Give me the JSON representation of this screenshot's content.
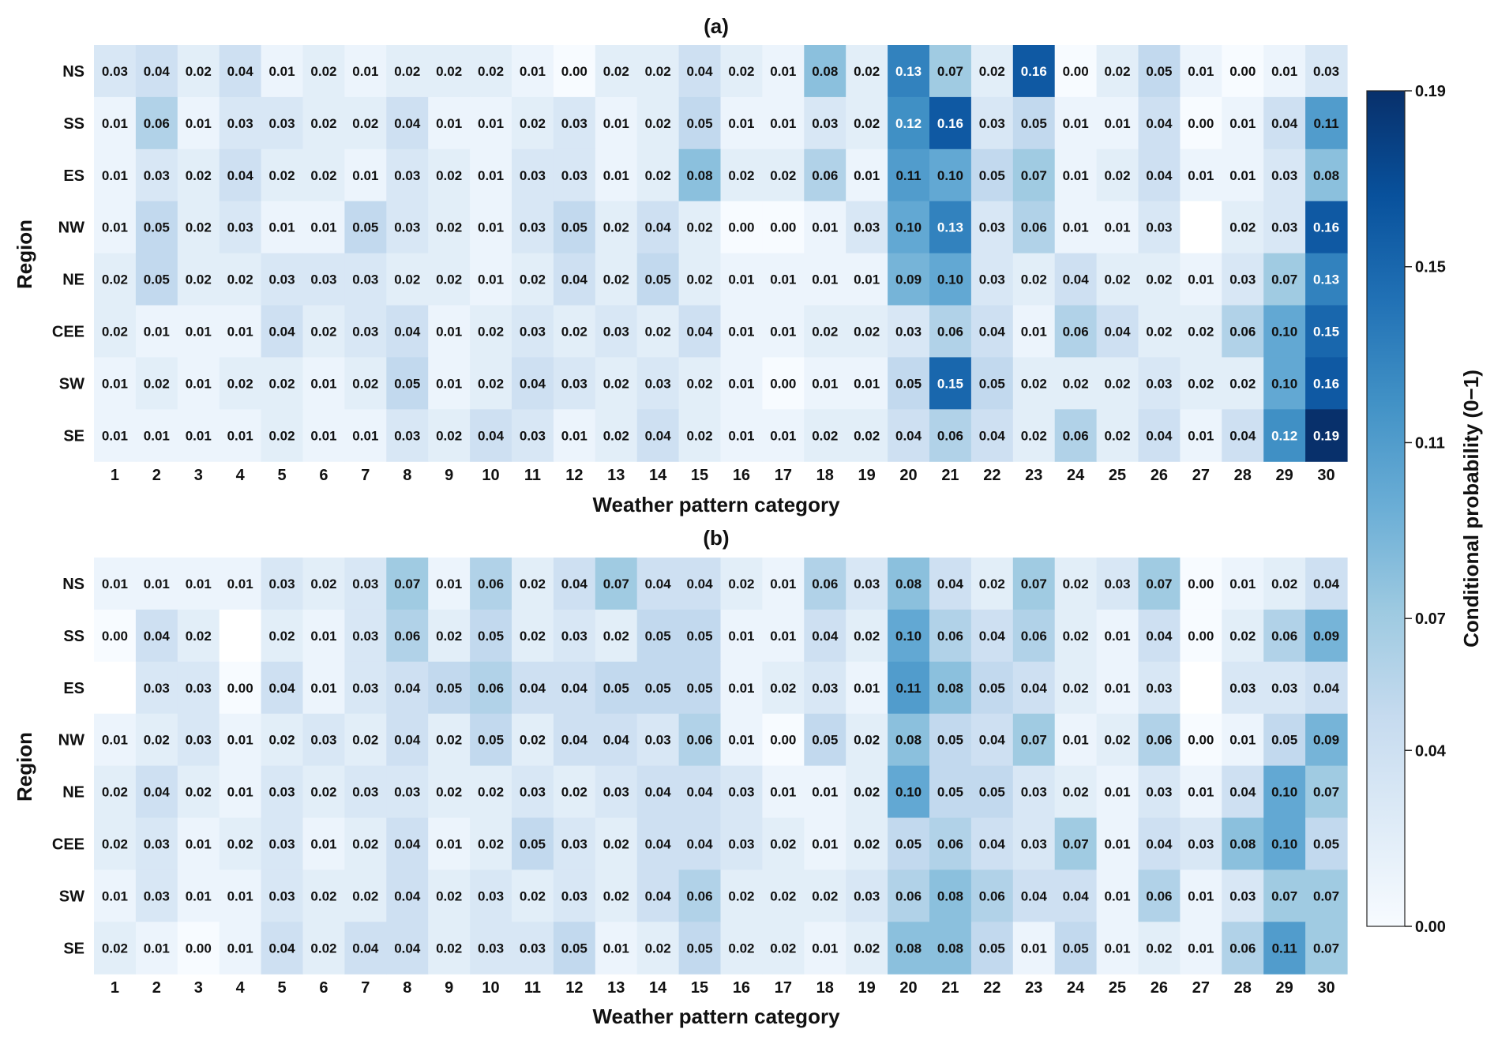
{
  "chart_data": [
    {
      "type": "heatmap",
      "title": "(a)",
      "xlabel": "Weather pattern category",
      "ylabel": "Region",
      "x": [
        "1",
        "2",
        "3",
        "4",
        "5",
        "6",
        "7",
        "8",
        "9",
        "10",
        "11",
        "12",
        "13",
        "14",
        "15",
        "16",
        "17",
        "18",
        "19",
        "20",
        "21",
        "22",
        "23",
        "24",
        "25",
        "26",
        "27",
        "28",
        "29",
        "30"
      ],
      "y": [
        "NS",
        "SS",
        "ES",
        "NW",
        "NE",
        "CEE",
        "SW",
        "SE"
      ],
      "values": [
        [
          0.03,
          0.04,
          0.02,
          0.04,
          0.01,
          0.02,
          0.01,
          0.02,
          0.02,
          0.02,
          0.01,
          0.0,
          0.02,
          0.02,
          0.04,
          0.02,
          0.01,
          0.08,
          0.02,
          0.13,
          0.07,
          0.02,
          0.16,
          0.0,
          0.02,
          0.05,
          0.01,
          0.0,
          0.01,
          0.03
        ],
        [
          0.01,
          0.06,
          0.01,
          0.03,
          0.03,
          0.02,
          0.02,
          0.04,
          0.01,
          0.01,
          0.02,
          0.03,
          0.01,
          0.02,
          0.05,
          0.01,
          0.01,
          0.03,
          0.02,
          0.12,
          0.16,
          0.03,
          0.05,
          0.01,
          0.01,
          0.04,
          0.0,
          0.01,
          0.04,
          0.11
        ],
        [
          0.01,
          0.03,
          0.02,
          0.04,
          0.02,
          0.02,
          0.01,
          0.03,
          0.02,
          0.01,
          0.03,
          0.03,
          0.01,
          0.02,
          0.08,
          0.02,
          0.02,
          0.06,
          0.01,
          0.11,
          0.1,
          0.05,
          0.07,
          0.01,
          0.02,
          0.04,
          0.01,
          0.01,
          0.03,
          0.08
        ],
        [
          0.01,
          0.05,
          0.02,
          0.03,
          0.01,
          0.01,
          0.05,
          0.03,
          0.02,
          0.01,
          0.03,
          0.05,
          0.02,
          0.04,
          0.02,
          0.0,
          0.0,
          0.01,
          0.03,
          0.1,
          0.13,
          0.03,
          0.06,
          0.01,
          0.01,
          0.03,
          null,
          0.02,
          0.03,
          0.16
        ],
        [
          0.02,
          0.05,
          0.02,
          0.02,
          0.03,
          0.03,
          0.03,
          0.02,
          0.02,
          0.01,
          0.02,
          0.04,
          0.02,
          0.05,
          0.02,
          0.01,
          0.01,
          0.01,
          0.01,
          0.09,
          0.1,
          0.03,
          0.02,
          0.04,
          0.02,
          0.02,
          0.01,
          0.03,
          0.07,
          0.13
        ],
        [
          0.02,
          0.01,
          0.01,
          0.01,
          0.04,
          0.02,
          0.03,
          0.04,
          0.01,
          0.02,
          0.03,
          0.02,
          0.03,
          0.02,
          0.04,
          0.01,
          0.01,
          0.02,
          0.02,
          0.03,
          0.06,
          0.04,
          0.01,
          0.06,
          0.04,
          0.02,
          0.02,
          0.06,
          0.1,
          0.15
        ],
        [
          0.01,
          0.02,
          0.01,
          0.02,
          0.02,
          0.01,
          0.02,
          0.05,
          0.01,
          0.02,
          0.04,
          0.03,
          0.02,
          0.03,
          0.02,
          0.01,
          0.0,
          0.01,
          0.01,
          0.05,
          0.15,
          0.05,
          0.02,
          0.02,
          0.02,
          0.03,
          0.02,
          0.02,
          0.1,
          0.16
        ],
        [
          0.01,
          0.01,
          0.01,
          0.01,
          0.02,
          0.01,
          0.01,
          0.03,
          0.02,
          0.04,
          0.03,
          0.01,
          0.02,
          0.04,
          0.02,
          0.01,
          0.01,
          0.02,
          0.02,
          0.04,
          0.06,
          0.04,
          0.02,
          0.06,
          0.02,
          0.04,
          0.01,
          0.04,
          0.12,
          0.19
        ]
      ]
    },
    {
      "type": "heatmap",
      "title": "(b)",
      "xlabel": "Weather pattern category",
      "ylabel": "Region",
      "x": [
        "1",
        "2",
        "3",
        "4",
        "5",
        "6",
        "7",
        "8",
        "9",
        "10",
        "11",
        "12",
        "13",
        "14",
        "15",
        "16",
        "17",
        "18",
        "19",
        "20",
        "21",
        "22",
        "23",
        "24",
        "25",
        "26",
        "27",
        "28",
        "29",
        "30"
      ],
      "y": [
        "NS",
        "SS",
        "ES",
        "NW",
        "NE",
        "CEE",
        "SW",
        "SE"
      ],
      "values": [
        [
          0.01,
          0.01,
          0.01,
          0.01,
          0.03,
          0.02,
          0.03,
          0.07,
          0.01,
          0.06,
          0.02,
          0.04,
          0.07,
          0.04,
          0.04,
          0.02,
          0.01,
          0.06,
          0.03,
          0.08,
          0.04,
          0.02,
          0.07,
          0.02,
          0.03,
          0.07,
          0.0,
          0.01,
          0.02,
          0.04
        ],
        [
          0.0,
          0.04,
          0.02,
          null,
          0.02,
          0.01,
          0.03,
          0.06,
          0.02,
          0.05,
          0.02,
          0.03,
          0.02,
          0.05,
          0.05,
          0.01,
          0.01,
          0.04,
          0.02,
          0.1,
          0.06,
          0.04,
          0.06,
          0.02,
          0.01,
          0.04,
          0.0,
          0.02,
          0.06,
          0.09
        ],
        [
          null,
          0.03,
          0.03,
          0.0,
          0.04,
          0.01,
          0.03,
          0.04,
          0.05,
          0.06,
          0.04,
          0.04,
          0.05,
          0.05,
          0.05,
          0.01,
          0.02,
          0.03,
          0.01,
          0.11,
          0.08,
          0.05,
          0.04,
          0.02,
          0.01,
          0.03,
          null,
          0.03,
          0.03,
          0.04
        ],
        [
          0.01,
          0.02,
          0.03,
          0.01,
          0.02,
          0.03,
          0.02,
          0.04,
          0.02,
          0.05,
          0.02,
          0.04,
          0.04,
          0.03,
          0.06,
          0.01,
          0.0,
          0.05,
          0.02,
          0.08,
          0.05,
          0.04,
          0.07,
          0.01,
          0.02,
          0.06,
          0.0,
          0.01,
          0.05,
          0.09
        ],
        [
          0.02,
          0.04,
          0.02,
          0.01,
          0.03,
          0.02,
          0.03,
          0.03,
          0.02,
          0.02,
          0.03,
          0.02,
          0.03,
          0.04,
          0.04,
          0.03,
          0.01,
          0.01,
          0.02,
          0.1,
          0.05,
          0.05,
          0.03,
          0.02,
          0.01,
          0.03,
          0.01,
          0.04,
          0.1,
          0.07
        ],
        [
          0.02,
          0.03,
          0.01,
          0.02,
          0.03,
          0.01,
          0.02,
          0.04,
          0.01,
          0.02,
          0.05,
          0.03,
          0.02,
          0.04,
          0.04,
          0.03,
          0.02,
          0.01,
          0.02,
          0.05,
          0.06,
          0.04,
          0.03,
          0.07,
          0.01,
          0.04,
          0.03,
          0.08,
          0.1,
          0.05
        ],
        [
          0.01,
          0.03,
          0.01,
          0.01,
          0.03,
          0.02,
          0.02,
          0.04,
          0.02,
          0.03,
          0.02,
          0.03,
          0.02,
          0.04,
          0.06,
          0.02,
          0.02,
          0.02,
          0.03,
          0.06,
          0.08,
          0.06,
          0.04,
          0.04,
          0.01,
          0.06,
          0.01,
          0.03,
          0.07,
          0.07
        ],
        [
          0.02,
          0.01,
          0.0,
          0.01,
          0.04,
          0.02,
          0.04,
          0.04,
          0.02,
          0.03,
          0.03,
          0.05,
          0.01,
          0.02,
          0.05,
          0.02,
          0.02,
          0.01,
          0.02,
          0.08,
          0.08,
          0.05,
          0.01,
          0.05,
          0.01,
          0.02,
          0.01,
          0.06,
          0.11,
          0.07
        ]
      ]
    }
  ],
  "colorbar": {
    "label": "Conditional probability (0−1)",
    "min": 0,
    "max": 0.19,
    "ticks": [
      "0.00",
      "0.04",
      "0.07",
      "0.11",
      "0.15",
      "0.19"
    ],
    "colormap": "Blues",
    "low_color": "#f7fbff",
    "high_color": "#08306b"
  }
}
